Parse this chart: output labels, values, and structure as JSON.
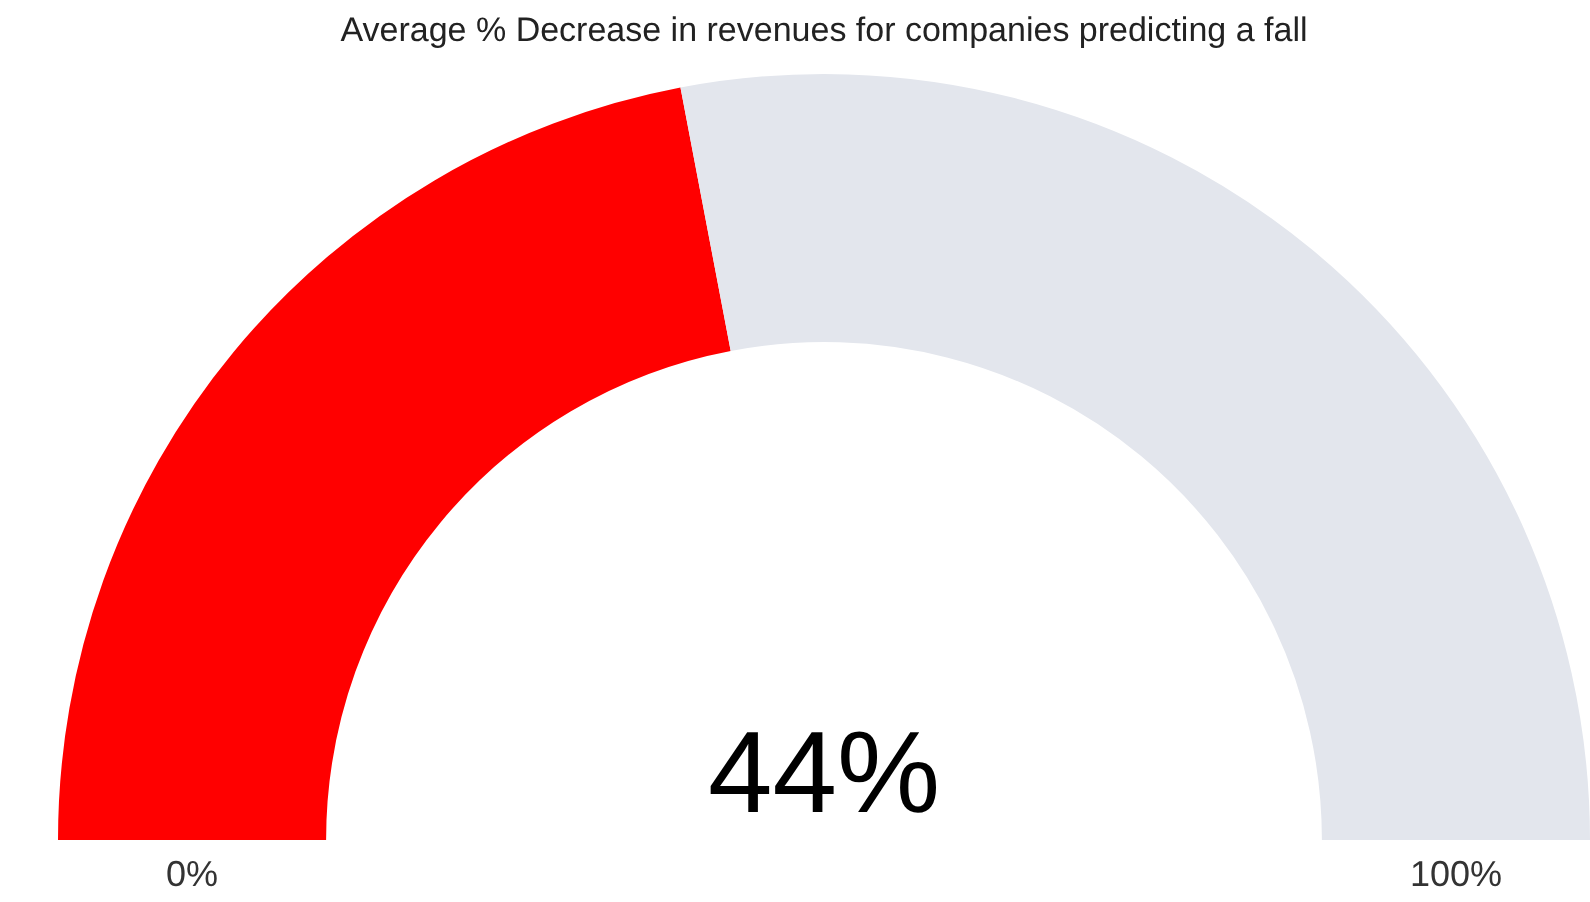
{
  "chart_data": {
    "type": "donut",
    "title": "Average % Decrease in revenues for companies predicting a fall",
    "categories": [
      null,
      null
    ],
    "values": [
      44,
      56
    ],
    "colors": [
      "#ff0000",
      "#e3e6ed"
    ],
    "annotations": [
      "44%",
      "0%",
      "100%"
    ],
    "legend": false
  }
}
